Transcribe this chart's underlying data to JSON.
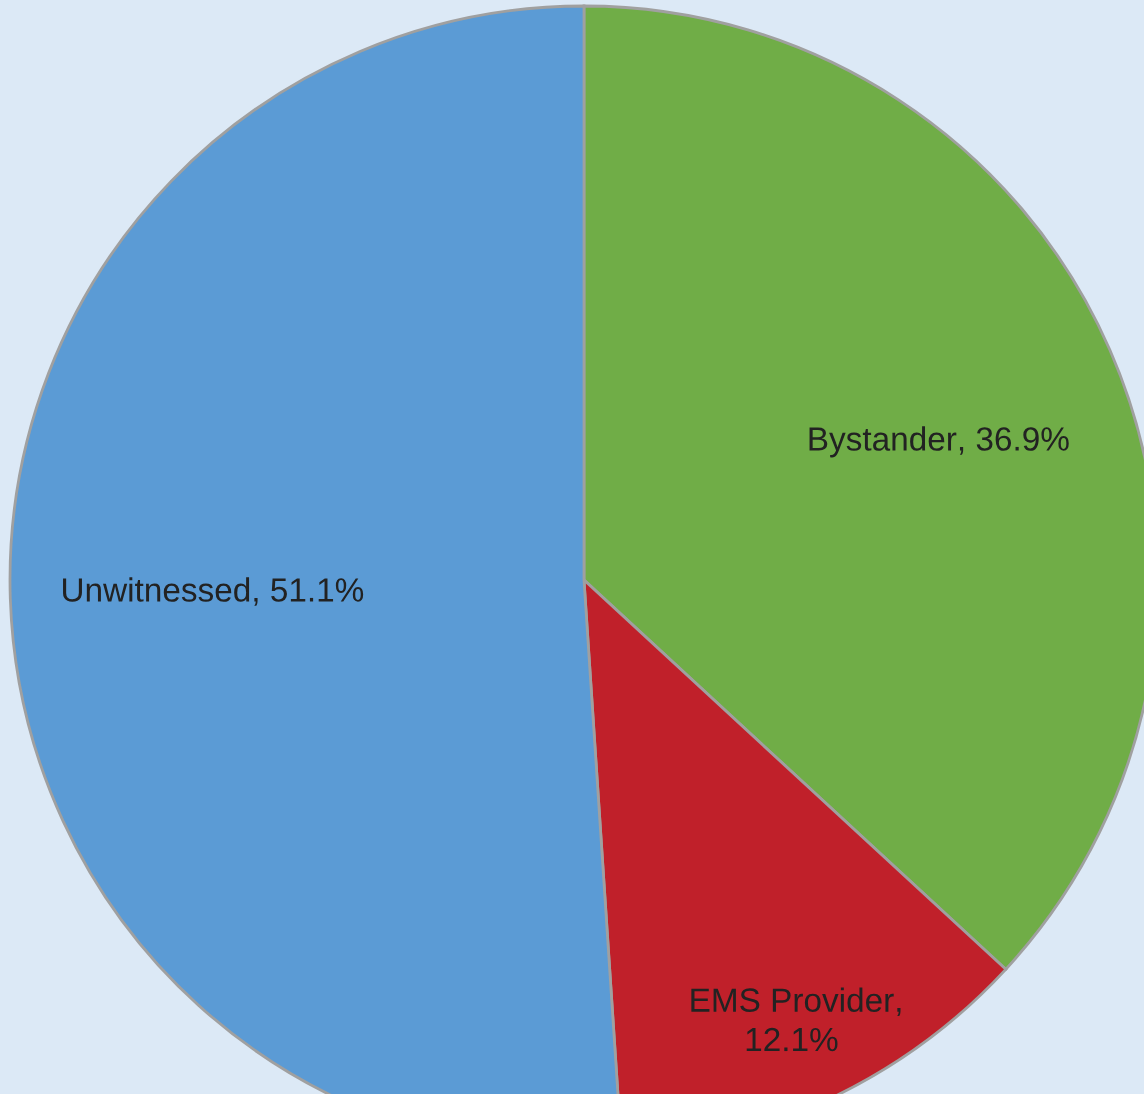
{
  "chart_data": {
    "type": "pie",
    "categories": [
      "Bystander",
      "EMS Provider",
      "Unwitnessed"
    ],
    "values": [
      36.9,
      12.1,
      51.1
    ],
    "colors": [
      "#70ad47",
      "#c0202a",
      "#5b9bd5"
    ],
    "value_labels": [
      ", 36.9%",
      ", 12.1%",
      ", 51.1%"
    ]
  }
}
